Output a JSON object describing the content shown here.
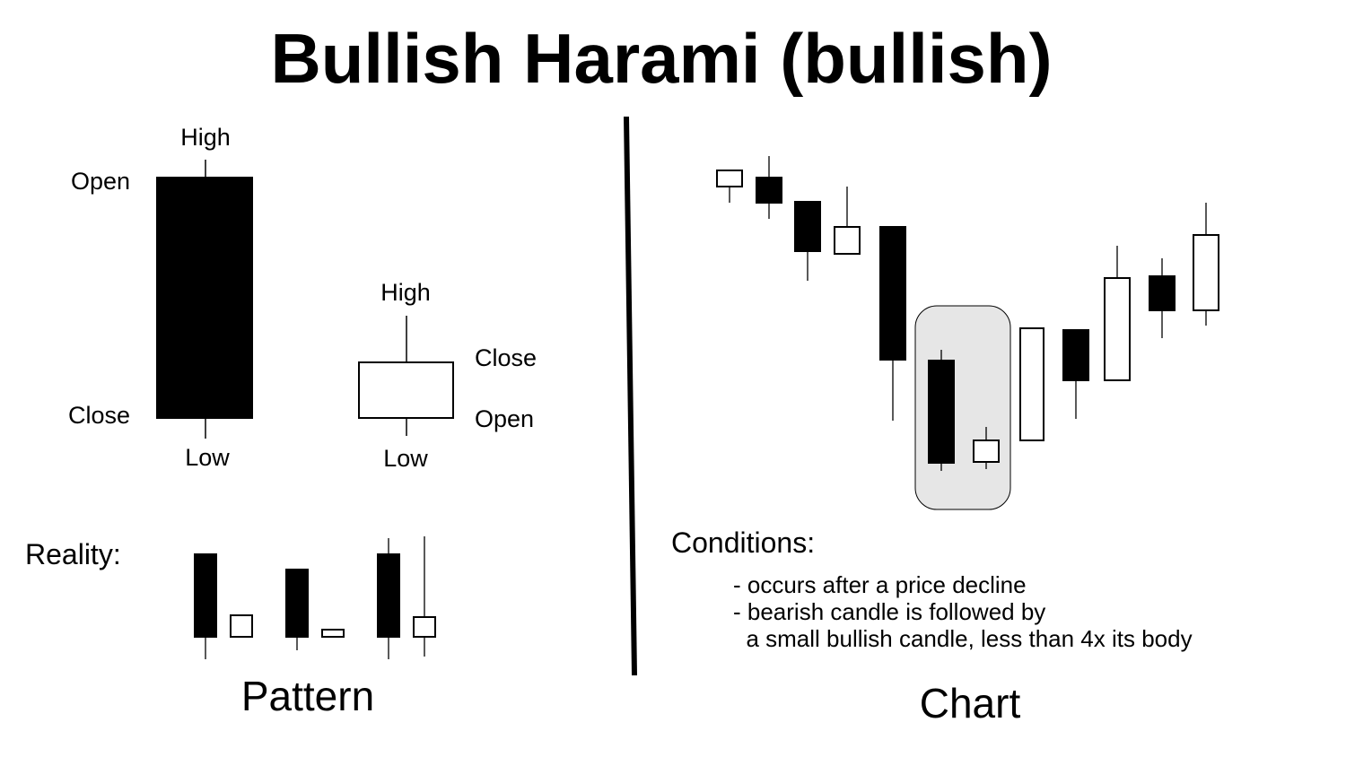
{
  "title": "Bullish Harami (bullish)",
  "colors": {
    "bearish": "#000000",
    "bullish": "#ffffff",
    "highlight": "#e6e6e6",
    "stroke": "#000000"
  },
  "pattern": {
    "section_label": "Pattern",
    "bearish_candle": {
      "high": "High",
      "open": "Open",
      "close": "Close",
      "low": "Low"
    },
    "bullish_candle": {
      "high": "High",
      "close": "Close",
      "open": "Open",
      "low": "Low"
    },
    "reality_label": "Reality:",
    "reality_pairs": [
      {
        "bearish": {
          "open": 92,
          "close": 0,
          "high": 93,
          "low": -25
        },
        "bullish": {
          "open": 0,
          "close": 24,
          "high": 24,
          "low": 0
        }
      },
      {
        "bearish": {
          "open": 75,
          "close": 0,
          "high": 75,
          "low": -15
        },
        "bullish": {
          "open": 0,
          "close": 8,
          "high": 8,
          "low": 0
        }
      },
      {
        "bearish": {
          "open": 92,
          "close": 0,
          "high": 110,
          "low": -25
        },
        "bullish": {
          "open": 0,
          "close": 22,
          "high": 112,
          "low": -22
        }
      }
    ]
  },
  "chart": {
    "section_label": "Chart",
    "candles": [
      {
        "open": 630,
        "close": 648,
        "high": 648,
        "low": 612,
        "highlight": false
      },
      {
        "open": 640,
        "close": 612,
        "high": 664,
        "low": 594,
        "highlight": false
      },
      {
        "open": 613,
        "close": 558,
        "high": 613,
        "low": 525,
        "highlight": false
      },
      {
        "open": 555,
        "close": 585,
        "high": 630,
        "low": 555,
        "highlight": false
      },
      {
        "open": 585,
        "close": 437,
        "high": 585,
        "low": 369,
        "highlight": false
      },
      {
        "open": 436,
        "close": 322,
        "high": 448,
        "low": 313,
        "highlight": true
      },
      {
        "open": 323,
        "close": 347,
        "high": 362,
        "low": 315,
        "highlight": true
      },
      {
        "open": 347,
        "close": 472,
        "high": 472,
        "low": 347,
        "highlight": false
      },
      {
        "open": 470,
        "close": 414,
        "high": 470,
        "low": 371,
        "highlight": false
      },
      {
        "open": 414,
        "close": 528,
        "high": 564,
        "low": 414,
        "highlight": false
      },
      {
        "open": 530,
        "close": 492,
        "high": 550,
        "low": 461,
        "highlight": false
      },
      {
        "open": 492,
        "close": 576,
        "high": 612,
        "low": 475,
        "highlight": false
      }
    ],
    "conditions_title": "Conditions:",
    "conditions": [
      "- occurs after a price decline",
      "- bearish candle is followed by",
      "  a small bullish candle, less than 4x its body"
    ]
  }
}
